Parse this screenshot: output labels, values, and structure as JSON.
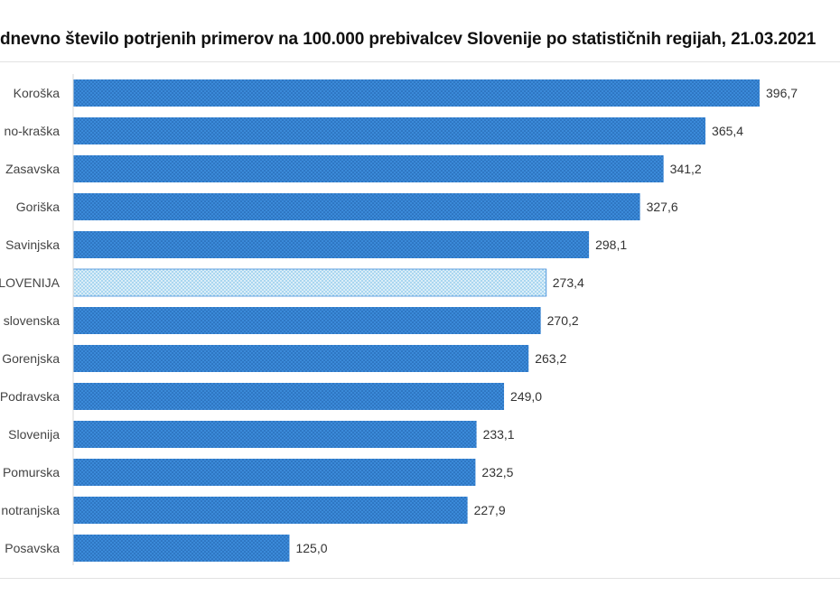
{
  "chart_data": {
    "type": "bar",
    "orientation": "horizontal",
    "title": "dnevno število potrjenih primerov na 100.000  prebivalcev Slovenije po statističnih regijah, 21.03.2021",
    "categories": [
      "Koroška",
      "no-kraška",
      "Zasavska",
      "Goriška",
      "Savinjska",
      "LOVENIJA",
      "slovenska",
      "Gorenjska",
      "Podravska",
      "Slovenija",
      "Pomurska",
      "notranjska",
      "Posavska"
    ],
    "values": [
      396.7,
      365.4,
      341.2,
      327.6,
      298.1,
      273.4,
      270.2,
      263.2,
      249.0,
      233.1,
      232.5,
      227.9,
      125.0
    ],
    "value_labels": [
      "396,7",
      "365,4",
      "341,2",
      "327,6",
      "298,1",
      "273,4",
      "270,2",
      "263,2",
      "249,0",
      "233,1",
      "232,5",
      "227,9",
      "125,0"
    ],
    "highlight_index": 5,
    "xlabel": "",
    "ylabel": "",
    "xlim": [
      0,
      400
    ],
    "grid": false,
    "legend": "none",
    "colors": {
      "bar": "#3b8ad9",
      "bar_dots": "#1f5fa8",
      "highlight": "#a9d6f0",
      "highlight_dots": "#ffffff"
    }
  }
}
